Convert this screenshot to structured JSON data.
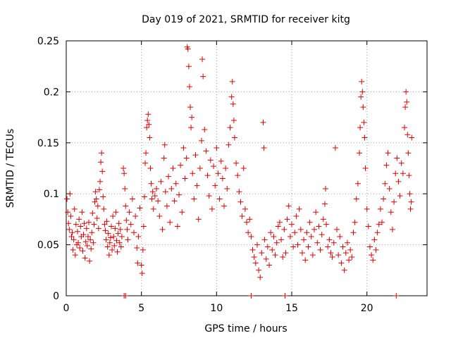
{
  "chart_data": {
    "type": "scatter",
    "title": "Day 019 of 2021, SRMTID for receiver kitg",
    "xlabel": "GPS time / hours",
    "ylabel": "SRMTID / TECUs",
    "xlim": [
      0,
      24
    ],
    "ylim": [
      0,
      0.25
    ],
    "xticks": [
      "0",
      "5",
      "10",
      "15",
      "20"
    ],
    "xtick_values": [
      0,
      5,
      10,
      15,
      20
    ],
    "yticks": [
      "0",
      "0.05",
      "0.1",
      "0.15",
      "0.2",
      "0.25"
    ],
    "ytick_values": [
      0,
      0.05,
      0.1,
      0.15,
      0.2,
      0.25
    ],
    "grid": true,
    "marker": "plus",
    "color": "#e00000",
    "series": [
      {
        "points": [
          [
            0.05,
            0.095
          ],
          [
            0.1,
            0.082
          ],
          [
            0.15,
            0.071
          ],
          [
            0.2,
            0.065
          ],
          [
            0.25,
            0.1
          ],
          [
            0.3,
            0.078
          ],
          [
            0.35,
            0.058
          ],
          [
            0.4,
            0.062
          ],
          [
            0.45,
            0.045
          ],
          [
            0.5,
            0.055
          ],
          [
            0.55,
            0.085
          ],
          [
            0.6,
            0.04
          ],
          [
            0.65,
            0.07
          ],
          [
            0.7,
            0.05
          ],
          [
            0.75,
            0.063
          ],
          [
            0.8,
            0.052
          ],
          [
            0.85,
            0.075
          ],
          [
            0.9,
            0.047
          ],
          [
            0.95,
            0.068
          ],
          [
            1.0,
            0.058
          ],
          [
            1.05,
            0.082
          ],
          [
            1.1,
            0.044
          ],
          [
            1.15,
            0.06
          ],
          [
            1.2,
            0.071
          ],
          [
            1.25,
            0.037
          ],
          [
            1.3,
            0.053
          ],
          [
            1.35,
            0.066
          ],
          [
            1.4,
            0.049
          ],
          [
            1.45,
            0.058
          ],
          [
            1.5,
            0.072
          ],
          [
            1.55,
            0.034
          ],
          [
            1.6,
            0.055
          ],
          [
            1.65,
            0.046
          ],
          [
            1.7,
            0.062
          ],
          [
            1.75,
            0.081
          ],
          [
            1.8,
            0.052
          ],
          [
            1.85,
            0.07
          ],
          [
            1.9,
            0.092
          ],
          [
            1.95,
            0.102
          ],
          [
            2.0,
            0.095
          ],
          [
            2.05,
            0.076
          ],
          [
            2.1,
            0.088
          ],
          [
            2.15,
            0.066
          ],
          [
            2.2,
            0.104
          ],
          [
            2.25,
            0.112
          ],
          [
            2.3,
            0.131
          ],
          [
            2.35,
            0.14
          ],
          [
            2.4,
            0.122
          ],
          [
            2.45,
            0.097
          ],
          [
            2.5,
            0.085
          ],
          [
            2.55,
            0.07
          ],
          [
            2.6,
            0.064
          ],
          [
            2.65,
            0.055
          ],
          [
            2.7,
            0.073
          ],
          [
            2.75,
            0.048
          ],
          [
            2.8,
            0.061
          ],
          [
            2.85,
            0.04
          ],
          [
            2.9,
            0.052
          ],
          [
            2.95,
            0.057
          ],
          [
            3.0,
            0.068
          ],
          [
            3.05,
            0.045
          ],
          [
            3.1,
            0.078
          ],
          [
            3.15,
            0.058
          ],
          [
            3.2,
            0.049
          ],
          [
            3.25,
            0.066
          ],
          [
            3.3,
            0.082
          ],
          [
            3.35,
            0.054
          ],
          [
            3.4,
            0.043
          ],
          [
            3.45,
            0.061
          ],
          [
            3.5,
            0.071
          ],
          [
            3.55,
            0.052
          ],
          [
            3.6,
            0.065
          ],
          [
            3.65,
            0.048
          ],
          [
            3.7,
            0.058
          ],
          [
            3.8,
            0.125
          ],
          [
            3.85,
            0.12
          ],
          [
            3.9,
            0.105
          ],
          [
            3.95,
            0.088
          ],
          [
            4.0,
            0.074
          ],
          [
            4.05,
            0.065
          ],
          [
            4.1,
            0.055
          ],
          [
            4.2,
            0.082
          ],
          [
            4.3,
            0.07
          ],
          [
            4.4,
            0.095
          ],
          [
            4.5,
            0.062
          ],
          [
            4.6,
            0.078
          ],
          [
            4.7,
            0.047
          ],
          [
            4.75,
            0.032
          ],
          [
            4.8,
            0.058
          ],
          [
            4.9,
            0.086
          ],
          [
            5.0,
            0.03
          ],
          [
            5.05,
            0.022
          ],
          [
            5.1,
            0.045
          ],
          [
            5.15,
            0.068
          ],
          [
            5.2,
            0.097
          ],
          [
            5.25,
            0.13
          ],
          [
            5.3,
            0.14
          ],
          [
            5.35,
            0.165
          ],
          [
            5.4,
            0.172
          ],
          [
            5.45,
            0.178
          ],
          [
            5.5,
            0.168
          ],
          [
            5.55,
            0.155
          ],
          [
            5.6,
            0.125
          ],
          [
            5.65,
            0.11
          ],
          [
            5.7,
            0.095
          ],
          [
            5.75,
            0.102
          ],
          [
            5.8,
            0.085
          ],
          [
            5.9,
            0.098
          ],
          [
            6.0,
            0.105
          ],
          [
            6.1,
            0.093
          ],
          [
            6.2,
            0.078
          ],
          [
            6.3,
            0.112
          ],
          [
            6.4,
            0.065
          ],
          [
            6.5,
            0.135
          ],
          [
            6.55,
            0.148
          ],
          [
            6.6,
            0.102
          ],
          [
            6.7,
            0.088
          ],
          [
            6.8,
            0.117
          ],
          [
            6.9,
            0.072
          ],
          [
            7.0,
            0.105
          ],
          [
            7.1,
            0.125
          ],
          [
            7.2,
            0.093
          ],
          [
            7.3,
            0.11
          ],
          [
            7.4,
            0.068
          ],
          [
            7.5,
            0.099
          ],
          [
            7.6,
            0.128
          ],
          [
            7.7,
            0.082
          ],
          [
            7.8,
            0.145
          ],
          [
            7.9,
            0.115
          ],
          [
            8.0,
            0.135
          ],
          [
            8.05,
            0.244
          ],
          [
            8.1,
            0.242
          ],
          [
            8.15,
            0.225
          ],
          [
            8.2,
            0.205
          ],
          [
            8.25,
            0.185
          ],
          [
            8.3,
            0.165
          ],
          [
            8.35,
            0.175
          ],
          [
            8.4,
            0.12
          ],
          [
            8.5,
            0.095
          ],
          [
            8.6,
            0.138
          ],
          [
            8.7,
            0.108
          ],
          [
            8.8,
            0.075
          ],
          [
            8.9,
            0.125
          ],
          [
            9.0,
            0.152
          ],
          [
            9.05,
            0.232
          ],
          [
            9.1,
            0.215
          ],
          [
            9.2,
            0.163
          ],
          [
            9.3,
            0.142
          ],
          [
            9.4,
            0.118
          ],
          [
            9.5,
            0.098
          ],
          [
            9.6,
            0.133
          ],
          [
            9.7,
            0.085
          ],
          [
            9.8,
            0.127
          ],
          [
            9.9,
            0.108
          ],
          [
            10.0,
            0.145
          ],
          [
            10.1,
            0.12
          ],
          [
            10.2,
            0.095
          ],
          [
            10.3,
            0.132
          ],
          [
            10.4,
            0.115
          ],
          [
            10.5,
            0.088
          ],
          [
            10.6,
            0.125
          ],
          [
            10.7,
            0.105
          ],
          [
            10.8,
            0.148
          ],
          [
            10.9,
            0.165
          ],
          [
            11.0,
            0.195
          ],
          [
            11.05,
            0.21
          ],
          [
            11.1,
            0.188
          ],
          [
            11.15,
            0.172
          ],
          [
            11.2,
            0.155
          ],
          [
            11.3,
            0.13
          ],
          [
            11.4,
            0.118
          ],
          [
            11.5,
            0.102
          ],
          [
            11.6,
            0.092
          ],
          [
            11.7,
            0.078
          ],
          [
            11.8,
            0.125
          ],
          [
            11.9,
            0.085
          ],
          [
            12.0,
            0.072
          ],
          [
            12.1,
            0.062
          ],
          [
            12.2,
            0.075
          ],
          [
            12.3,
            0.058
          ],
          [
            12.4,
            0.045
          ],
          [
            12.5,
            0.038
          ],
          [
            12.6,
            0.032
          ],
          [
            12.7,
            0.05
          ],
          [
            12.8,
            0.025
          ],
          [
            12.9,
            0.018
          ],
          [
            13.0,
            0.042
          ],
          [
            13.1,
            0.17
          ],
          [
            13.15,
            0.145
          ],
          [
            13.2,
            0.055
          ],
          [
            13.3,
            0.036
          ],
          [
            13.4,
            0.048
          ],
          [
            13.5,
            0.03
          ],
          [
            13.6,
            0.062
          ],
          [
            13.7,
            0.045
          ],
          [
            13.8,
            0.058
          ],
          [
            13.9,
            0.04
          ],
          [
            14.0,
            0.052
          ],
          [
            14.1,
            0.068
          ],
          [
            14.2,
            0.072
          ],
          [
            14.3,
            0.055
          ],
          [
            14.4,
            0.038
          ],
          [
            14.5,
            0.065
          ],
          [
            14.6,
            0.042
          ],
          [
            14.7,
            0.075
          ],
          [
            14.8,
            0.088
          ],
          [
            14.9,
            0.058
          ],
          [
            15.0,
            0.07
          ],
          [
            15.1,
            0.048
          ],
          [
            15.2,
            0.062
          ],
          [
            15.3,
            0.078
          ],
          [
            15.4,
            0.05
          ],
          [
            15.5,
            0.085
          ],
          [
            15.6,
            0.065
          ],
          [
            15.7,
            0.042
          ],
          [
            15.8,
            0.055
          ],
          [
            15.9,
            0.035
          ],
          [
            16.0,
            0.062
          ],
          [
            16.1,
            0.048
          ],
          [
            16.2,
            0.072
          ],
          [
            16.3,
            0.058
          ],
          [
            16.4,
            0.04
          ],
          [
            16.5,
            0.065
          ],
          [
            16.6,
            0.082
          ],
          [
            16.7,
            0.052
          ],
          [
            16.8,
            0.068
          ],
          [
            16.9,
            0.045
          ],
          [
            17.0,
            0.06
          ],
          [
            17.1,
            0.075
          ],
          [
            17.2,
            0.09
          ],
          [
            17.25,
            0.105
          ],
          [
            17.3,
            0.07
          ],
          [
            17.4,
            0.048
          ],
          [
            17.5,
            0.055
          ],
          [
            17.6,
            0.042
          ],
          [
            17.7,
            0.038
          ],
          [
            17.8,
            0.052
          ],
          [
            17.9,
            0.145
          ],
          [
            18.0,
            0.065
          ],
          [
            18.1,
            0.04
          ],
          [
            18.2,
            0.058
          ],
          [
            18.3,
            0.032
          ],
          [
            18.4,
            0.048
          ],
          [
            18.5,
            0.025
          ],
          [
            18.6,
            0.042
          ],
          [
            18.7,
            0.052
          ],
          [
            18.8,
            0.035
          ],
          [
            18.9,
            0.045
          ],
          [
            19.0,
            0.038
          ],
          [
            19.1,
            0.062
          ],
          [
            19.2,
            0.072
          ],
          [
            19.3,
            0.095
          ],
          [
            19.4,
            0.11
          ],
          [
            19.5,
            0.14
          ],
          [
            19.55,
            0.165
          ],
          [
            19.6,
            0.195
          ],
          [
            19.65,
            0.21
          ],
          [
            19.7,
            0.2
          ],
          [
            19.75,
            0.185
          ],
          [
            19.8,
            0.17
          ],
          [
            19.85,
            0.155
          ],
          [
            19.9,
            0.125
          ],
          [
            20.0,
            0.085
          ],
          [
            20.1,
            0.068
          ],
          [
            20.2,
            0.048
          ],
          [
            20.3,
            0.04
          ],
          [
            20.4,
            0.035
          ],
          [
            20.5,
            0.055
          ],
          [
            20.6,
            0.045
          ],
          [
            20.7,
            0.062
          ],
          [
            20.8,
            0.07
          ],
          [
            20.9,
            0.085
          ],
          [
            21.0,
            0.072
          ],
          [
            21.1,
            0.095
          ],
          [
            21.2,
            0.11
          ],
          [
            21.3,
            0.128
          ],
          [
            21.4,
            0.14
          ],
          [
            21.5,
            0.105
          ],
          [
            21.6,
            0.082
          ],
          [
            21.7,
            0.065
          ],
          [
            21.8,
            0.092
          ],
          [
            21.9,
            0.12
          ],
          [
            22.0,
            0.135
          ],
          [
            22.1,
            0.112
          ],
          [
            22.2,
            0.098
          ],
          [
            22.3,
            0.13
          ],
          [
            22.4,
            0.12
          ],
          [
            22.5,
            0.165
          ],
          [
            22.55,
            0.185
          ],
          [
            22.6,
            0.2
          ],
          [
            22.65,
            0.19
          ],
          [
            22.7,
            0.158
          ],
          [
            22.75,
            0.14
          ],
          [
            22.8,
            0.118
          ],
          [
            22.85,
            0.1
          ],
          [
            22.9,
            0.085
          ],
          [
            22.95,
            0.092
          ],
          [
            22.98,
            0.155
          ]
        ]
      },
      {
        "name": "",
        "points": [
          [
            3.85,
            0.0
          ],
          [
            3.95,
            0.0
          ],
          [
            12.3,
            0.0
          ],
          [
            14.55,
            0.0
          ],
          [
            21.95,
            0.0
          ]
        ]
      }
    ]
  }
}
